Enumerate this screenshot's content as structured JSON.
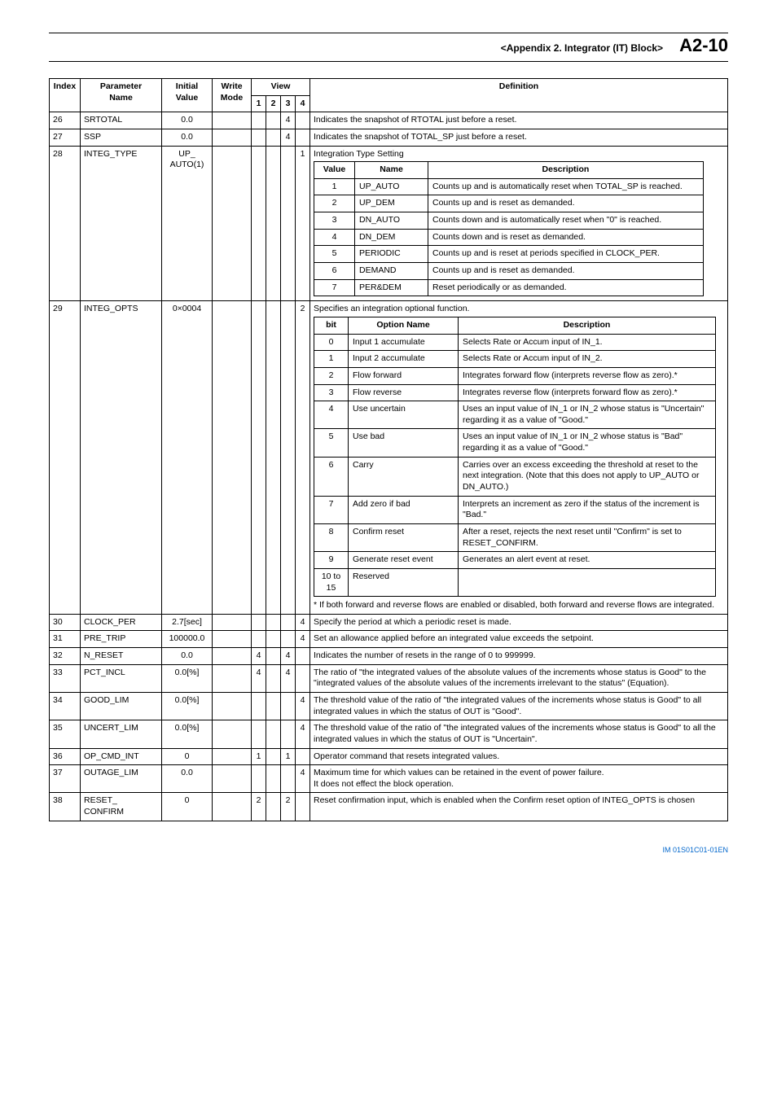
{
  "header": {
    "title": "<Appendix 2.  Integrator (IT) Block>",
    "page": "A2-10"
  },
  "footer": "IM 01S01C01-01EN",
  "thead": {
    "index": "Index",
    "pname_l1": "Parameter",
    "pname_l2": "Name",
    "ival_l1": "Initial",
    "ival_l2": "Value",
    "wmode_l1": "Write",
    "wmode_l2": "Mode",
    "view": "View",
    "v1": "1",
    "v2": "2",
    "v3": "3",
    "v4": "4",
    "def": "Definition"
  },
  "rows": {
    "r26": {
      "idx": "26",
      "pname": "SRTOTAL",
      "ival": "0.0",
      "v3": "4",
      "def": "Indicates the snapshot of RTOTAL just before a reset."
    },
    "r27": {
      "idx": "27",
      "pname": "SSP",
      "ival": "0.0",
      "v3": "4",
      "def": "Indicates the snapshot of TOTAL_SP just before a reset."
    },
    "r28": {
      "idx": "28",
      "pname": "INTEG_TYPE",
      "ival_l1": "UP_",
      "ival_l2": "AUTO(1)",
      "v4": "1",
      "intro": "Integration Type Setting",
      "th_val": "Value",
      "th_name": "Name",
      "th_desc": "Description",
      "t": {
        "r1": {
          "v": "1",
          "n": "UP_AUTO",
          "d": "Counts up and is automatically reset when TOTAL_SP is reached."
        },
        "r2": {
          "v": "2",
          "n": "UP_DEM",
          "d": "Counts up and is reset as demanded."
        },
        "r3": {
          "v": "3",
          "n": "DN_AUTO",
          "d": "Counts down and is automatically reset when \"0\" is reached."
        },
        "r4": {
          "v": "4",
          "n": "DN_DEM",
          "d": "Counts down and is reset as demanded."
        },
        "r5": {
          "v": "5",
          "n": "PERIODIC",
          "d": "Counts up and is reset at periods specified in CLOCK_PER."
        },
        "r6": {
          "v": "6",
          "n": "DEMAND",
          "d": "Counts up and is reset as demanded."
        },
        "r7": {
          "v": "7",
          "n": "PER&DEM",
          "d": "Reset periodically or as demanded."
        }
      }
    },
    "r29": {
      "idx": "29",
      "pname": "INTEG_OPTS",
      "ival": "0×0004",
      "v4": "2",
      "intro": "Specifies an integration optional function.",
      "th_bit": "bit",
      "th_opt": "Option Name",
      "th_desc": "Description",
      "t": {
        "r0": {
          "b": "0",
          "o": "Input 1 accumulate",
          "d": "Selects Rate or Accum input of IN_1."
        },
        "r1": {
          "b": "1",
          "o": "Input 2 accumulate",
          "d": "Selects Rate or Accum input of IN_2."
        },
        "r2": {
          "b": "2",
          "o": "Flow forward",
          "d": "Integrates forward flow (interprets reverse flow as zero).*"
        },
        "r3": {
          "b": "3",
          "o": "Flow reverse",
          "d": "Integrates reverse flow (interprets forward flow as zero).*"
        },
        "r4": {
          "b": "4",
          "o": "Use uncertain",
          "d": "Uses an input value of IN_1 or IN_2 whose status is \"Uncertain\" regarding it as a value of \"Good.\""
        },
        "r5": {
          "b": "5",
          "o": "Use bad",
          "d": "Uses an input value of IN_1 or IN_2 whose status is \"Bad\" regarding it as a value of \"Good.\""
        },
        "r6": {
          "b": "6",
          "o": "Carry",
          "d": "Carries over an excess exceeding the threshold at reset to the next integration. (Note that this does not apply to UP_AUTO or DN_AUTO.)"
        },
        "r7": {
          "b": "7",
          "o": "Add zero if bad",
          "d": "Interprets an increment as zero if the status of the increment is \"Bad.\""
        },
        "r8": {
          "b": "8",
          "o": "Confirm reset",
          "d": "After a reset, rejects the next reset until \"Confirm\" is set to RESET_CONFIRM."
        },
        "r9": {
          "b": "9",
          "o": "Generate reset event",
          "d": "Generates an alert event at reset."
        },
        "r10": {
          "b": "10 to 15",
          "o": "Reserved",
          "d": ""
        }
      },
      "note": "*  If both forward and reverse flows are enabled or disabled, both forward and reverse flows are integrated."
    },
    "r30": {
      "idx": "30",
      "pname": "CLOCK_PER",
      "ival": "2.7[sec]",
      "v4": "4",
      "def": "Specify the period at which a periodic reset is made."
    },
    "r31": {
      "idx": "31",
      "pname": "PRE_TRIP",
      "ival": "100000.0",
      "v4": "4",
      "def": "Set an allowance applied before an integrated value exceeds the setpoint."
    },
    "r32": {
      "idx": "32",
      "pname": "N_RESET",
      "ival": "0.0",
      "v1": "4",
      "v3": "4",
      "def": "Indicates the number of resets in the range of 0 to 999999."
    },
    "r33": {
      "idx": "33",
      "pname": "PCT_INCL",
      "ival": "0.0[%]",
      "v1": "4",
      "v3": "4",
      "def": "The ratio of \"the integrated values of the absolute values of the increments whose status is Good\" to the \"integrated values of the absolute values of the increments irrelevant to the status\" (Equation)."
    },
    "r34": {
      "idx": "34",
      "pname": "GOOD_LIM",
      "ival": "0.0[%]",
      "v4": "4",
      "def": "The threshold value of the ratio of \"the integrated values of the increments whose status is Good\" to all integrated values in which the status of OUT is \"Good\"."
    },
    "r35": {
      "idx": "35",
      "pname": "UNCERT_LIM",
      "ival": "0.0[%]",
      "v4": "4",
      "def": "The threshold value of the ratio of \"the integrated values of the increments whose status is Good\" to all the integrated values in which the status of OUT is \"Uncertain\"."
    },
    "r36": {
      "idx": "36",
      "pname": "OP_CMD_INT",
      "ival": "0",
      "v1": "1",
      "v3": "1",
      "def": "Operator command that resets integrated values."
    },
    "r37": {
      "idx": "37",
      "pname": "OUTAGE_LIM",
      "ival": "0.0",
      "v4": "4",
      "def": "Maximum time for which values can be retained in the event of power failure.\nIt does not effect the block operation."
    },
    "r38": {
      "idx": "38",
      "pname": "RESET_\nCONFIRM",
      "ival": "0",
      "v1": "2",
      "v3": "2",
      "def": "Reset confirmation input, which is enabled when the Confirm reset option of INTEG_OPTS is chosen"
    }
  }
}
